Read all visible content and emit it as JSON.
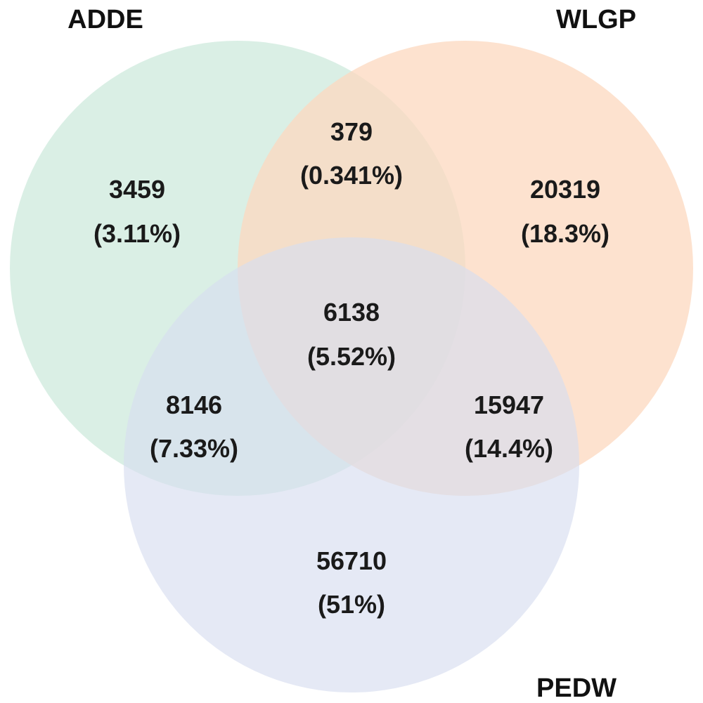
{
  "sets": [
    {
      "id": "adde",
      "label": "ADDE",
      "color": "#cdeadc"
    },
    {
      "id": "wlgp",
      "label": "WLGP",
      "color": "#fcd8bf"
    },
    {
      "id": "pedw",
      "label": "PEDW",
      "color": "#d7ddef"
    }
  ],
  "regions": [
    {
      "id": "adde-only",
      "count": "3459",
      "percent": "(3.11%)"
    },
    {
      "id": "adde-wlgp",
      "count": "379",
      "percent": "(0.341%)"
    },
    {
      "id": "wlgp-only",
      "count": "20319",
      "percent": "(18.3%)"
    },
    {
      "id": "all-three",
      "count": "6138",
      "percent": "(5.52%)"
    },
    {
      "id": "adde-pedw",
      "count": "8146",
      "percent": "(7.33%)"
    },
    {
      "id": "wlgp-pedw",
      "count": "15947",
      "percent": "(14.4%)"
    },
    {
      "id": "pedw-only",
      "count": "56710",
      "percent": "(51%)"
    }
  ]
}
